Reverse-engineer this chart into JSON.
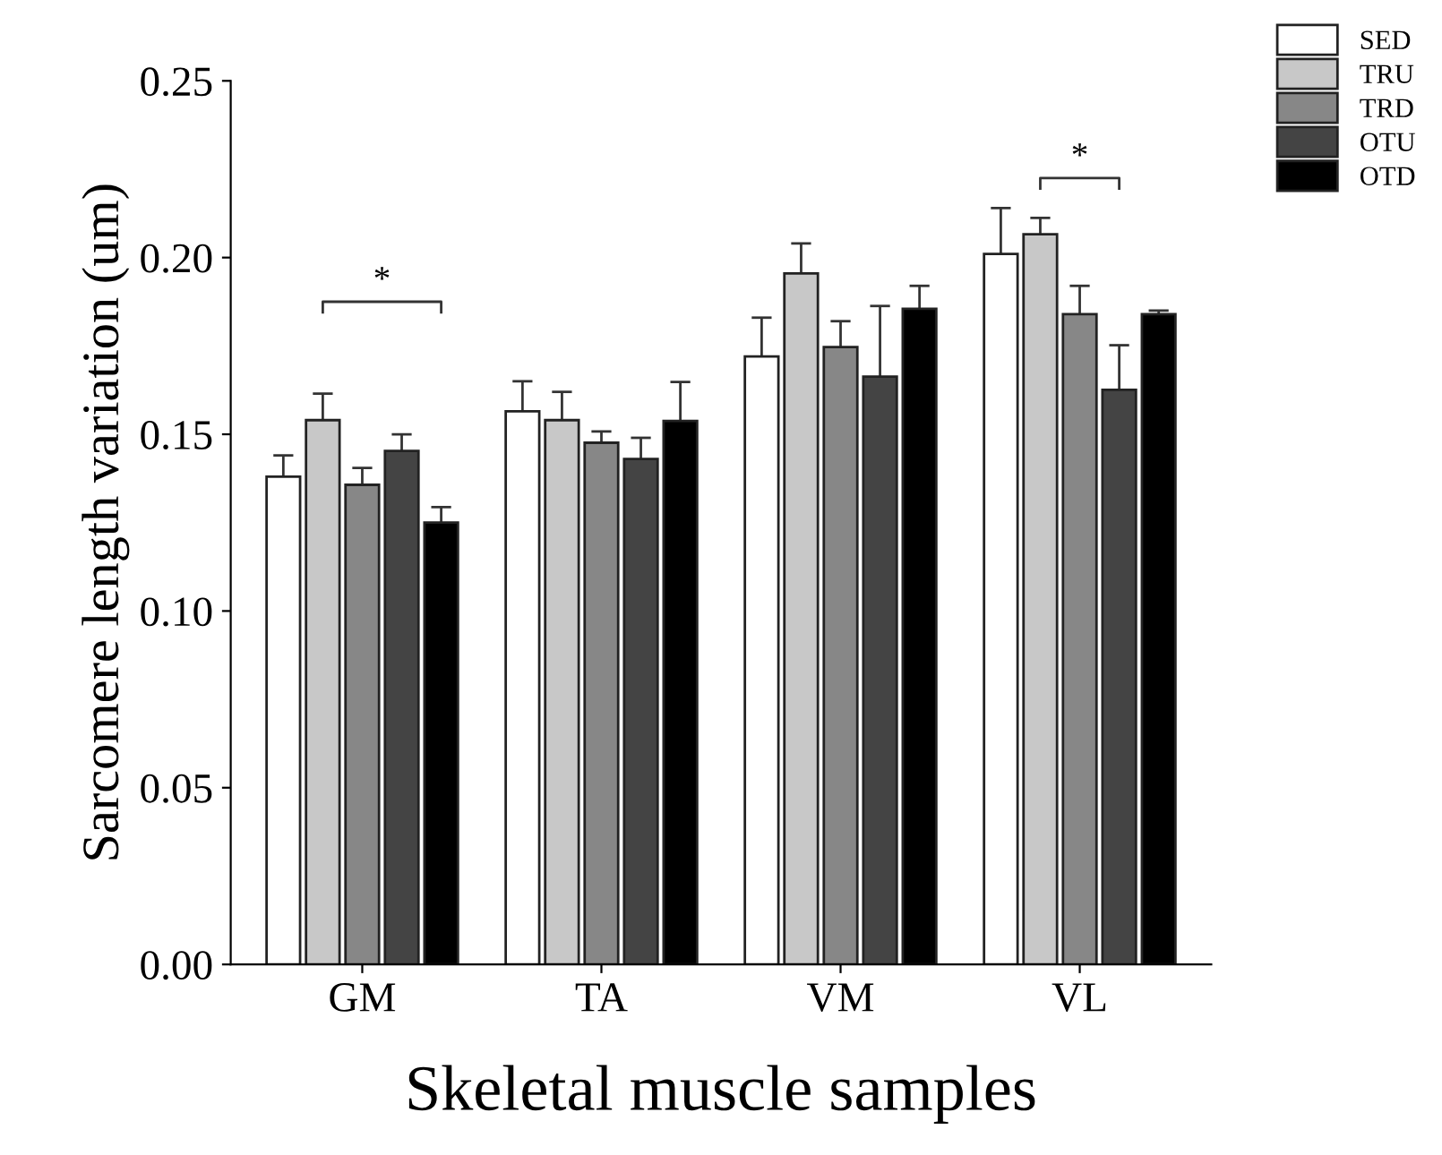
{
  "chart_data": {
    "type": "bar",
    "xlabel": "Skeletal muscle samples",
    "ylabel": "Sarcomere length variation (um)",
    "categories": [
      "GM",
      "TA",
      "VM",
      "VL"
    ],
    "series": [
      {
        "name": "SED",
        "color": "#ffffff",
        "values": [
          0.138,
          0.1565,
          0.172,
          0.201
        ],
        "errors": [
          0.006,
          0.0085,
          0.011,
          0.013
        ]
      },
      {
        "name": "TRU",
        "color": "#c8c8c8",
        "values": [
          0.154,
          0.154,
          0.1955,
          0.2066
        ],
        "errors": [
          0.0075,
          0.008,
          0.0085,
          0.0046
        ]
      },
      {
        "name": "TRD",
        "color": "#878787",
        "values": [
          0.1357,
          0.1476,
          0.1747,
          0.184
        ],
        "errors": [
          0.0048,
          0.0032,
          0.0073,
          0.008
        ]
      },
      {
        "name": "OTU",
        "color": "#444444",
        "values": [
          0.1453,
          0.143,
          0.1663,
          0.1626
        ],
        "errors": [
          0.0047,
          0.006,
          0.02,
          0.0126
        ]
      },
      {
        "name": "OTD",
        "color": "#000000",
        "values": [
          0.125,
          0.1538,
          0.1855,
          0.184
        ],
        "errors": [
          0.0044,
          0.011,
          0.0065,
          0.001
        ]
      }
    ],
    "ylim": [
      0,
      0.25
    ],
    "yticks": [
      {
        "value": 0,
        "label": "0.00"
      },
      {
        "value": 0.05,
        "label": "0.05"
      },
      {
        "value": 0.1,
        "label": "0.10"
      },
      {
        "value": 0.15,
        "label": "0.15"
      },
      {
        "value": 0.2,
        "label": "0.20"
      },
      {
        "value": 0.25,
        "label": "0.25"
      }
    ],
    "annotations": [
      "*",
      "*"
    ],
    "grid": false,
    "legend": "top right"
  }
}
